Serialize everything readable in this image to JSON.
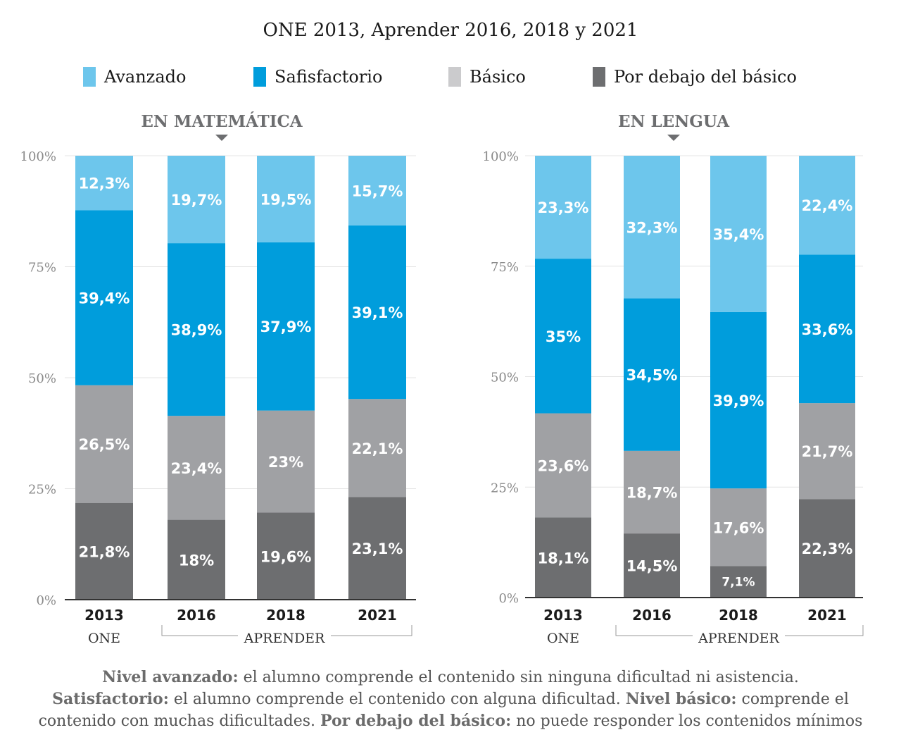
{
  "title": "ONE 2013, Aprender 2016, 2018 y 2021",
  "legend": [
    {
      "label": "Avanzado",
      "color": "#6dc6ec"
    },
    {
      "label": "Safisfactorio",
      "color": "#009ddc"
    },
    {
      "label": "Básico",
      "color": "#cbcbcd"
    },
    {
      "label": "Por debajo del básico",
      "color": "#6d6e70"
    }
  ],
  "footnote": {
    "l1_b": "Nivel avanzado:",
    "l1_t": " el alumno comprende el contenido sin ninguna dificultad ni asistencia.",
    "l2_b1": "Satisfactorio:",
    "l2_t1": " el alumno comprende el contenido con alguna dificultad. ",
    "l2_b2": "Nivel básico:",
    "l2_t2": " comprende el",
    "l3_t1": "contenido con muchas dificultades. ",
    "l3_b": "Por debajo del básico:",
    "l3_t2": " no puede responder los contenidos mínimos"
  },
  "chart_data": [
    {
      "type": "bar",
      "stacked": true,
      "title": "EN MATEMÁTICA",
      "categories": [
        "2013",
        "2016",
        "2018",
        "2021"
      ],
      "group_labels": [
        {
          "label": "ONE",
          "categories": [
            "2013"
          ]
        },
        {
          "label": "APRENDER",
          "categories": [
            "2016",
            "2018",
            "2021"
          ]
        }
      ],
      "y_ticks": [
        "0%",
        "25%",
        "50%",
        "75%",
        "100%"
      ],
      "ylim": [
        0,
        100
      ],
      "grid": true,
      "series": [
        {
          "name": "Por debajo del básico",
          "color": "#6d6e70",
          "values": [
            21.8,
            18,
            19.6,
            23.1
          ],
          "labels": [
            "21,8%",
            "18%",
            "19,6%",
            "23,1%"
          ]
        },
        {
          "name": "Básico",
          "color": "#a0a1a4",
          "values": [
            26.5,
            23.4,
            23,
            22.1
          ],
          "labels": [
            "26,5%",
            "23,4%",
            "23%",
            "22,1%"
          ]
        },
        {
          "name": "Safisfactorio",
          "color": "#009ddc",
          "values": [
            39.4,
            38.9,
            37.9,
            39.1
          ],
          "labels": [
            "39,4%",
            "38,9%",
            "37,9%",
            "39,1%"
          ]
        },
        {
          "name": "Avanzado",
          "color": "#6dc6ec",
          "values": [
            12.3,
            19.7,
            19.5,
            15.7
          ],
          "labels": [
            "12,3%",
            "19,7%",
            "19,5%",
            "15,7%"
          ]
        }
      ]
    },
    {
      "type": "bar",
      "stacked": true,
      "title": "EN LENGUA",
      "categories": [
        "2013",
        "2016",
        "2018",
        "2021"
      ],
      "group_labels": [
        {
          "label": "ONE",
          "categories": [
            "2013"
          ]
        },
        {
          "label": "APRENDER",
          "categories": [
            "2016",
            "2018",
            "2021"
          ]
        }
      ],
      "y_ticks": [
        "0%",
        "25%",
        "50%",
        "75%",
        "100%"
      ],
      "ylim": [
        0,
        100
      ],
      "grid": true,
      "series": [
        {
          "name": "Por debajo del básico",
          "color": "#6d6e70",
          "values": [
            18.1,
            14.5,
            7.1,
            22.3
          ],
          "labels": [
            "18,1%",
            "14,5%",
            "7,1%",
            "22,3%"
          ]
        },
        {
          "name": "Básico",
          "color": "#a0a1a4",
          "values": [
            23.6,
            18.7,
            17.6,
            21.7
          ],
          "labels": [
            "23,6%",
            "18,7%",
            "17,6%",
            "21,7%"
          ]
        },
        {
          "name": "Safisfactorio",
          "color": "#009ddc",
          "values": [
            35,
            34.5,
            39.9,
            33.6
          ],
          "labels": [
            "35%",
            "34,5%",
            "39,9%",
            "33,6%"
          ]
        },
        {
          "name": "Avanzado",
          "color": "#6dc6ec",
          "values": [
            23.3,
            32.3,
            35.4,
            22.4
          ],
          "labels": [
            "23,3%",
            "32,3%",
            "35,4%",
            "22,4%"
          ]
        }
      ]
    }
  ]
}
